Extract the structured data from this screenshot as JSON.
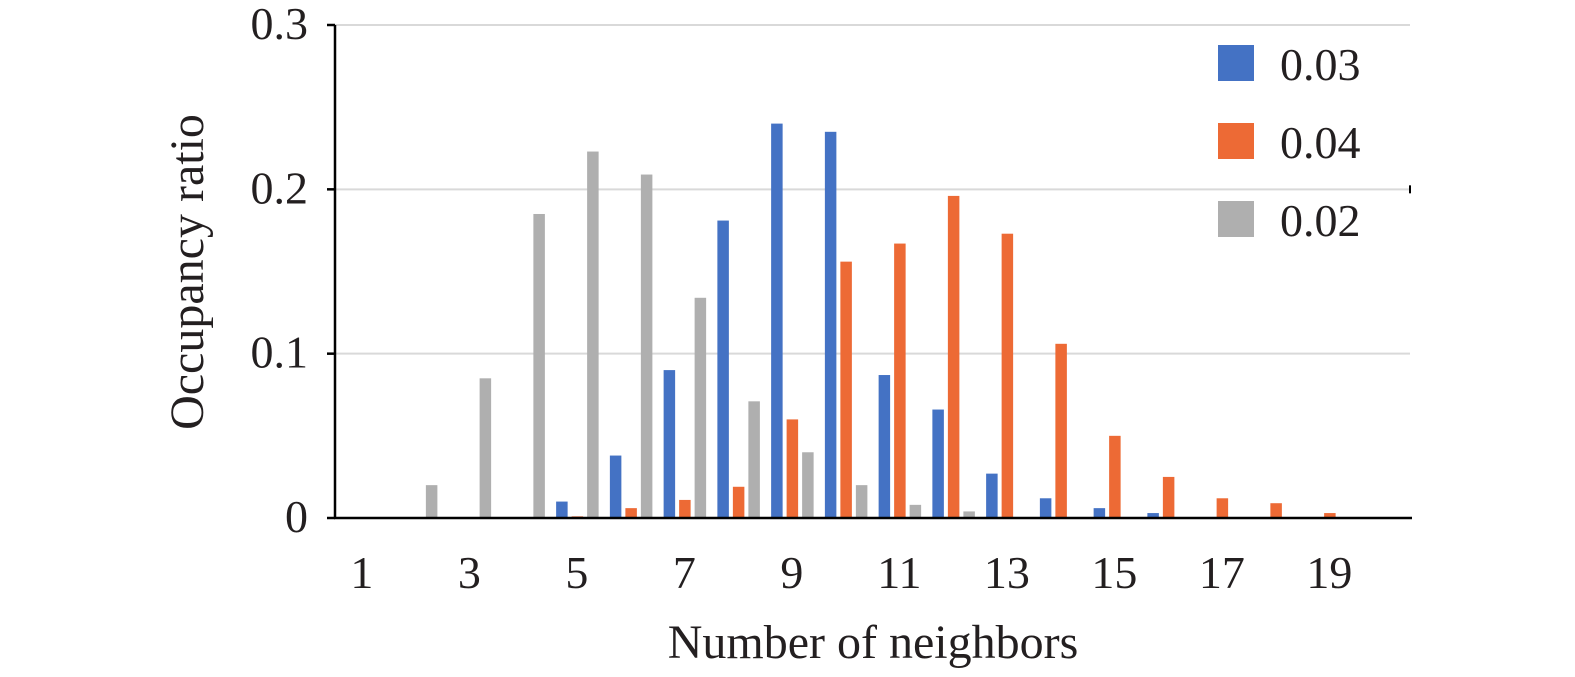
{
  "chart_data": {
    "type": "bar",
    "title": "",
    "xlabel": "Number of neighbors",
    "ylabel": "Occupancy ratio",
    "categories": [
      1,
      2,
      3,
      4,
      5,
      6,
      7,
      8,
      9,
      10,
      11,
      12,
      13,
      14,
      15,
      16,
      17,
      18,
      19,
      20
    ],
    "x_tick_labels": [
      "1",
      "3",
      "5",
      "7",
      "9",
      "11",
      "13",
      "15",
      "17",
      "19"
    ],
    "y_tick_labels": [
      "0",
      "0.1",
      "0.2",
      "0.3"
    ],
    "ylim": [
      0,
      0.3
    ],
    "y_ticks": [
      0,
      0.1,
      0.2,
      0.3
    ],
    "grid": "horizontal",
    "legend_position": "top-right",
    "series": [
      {
        "name": "0.03",
        "color": "#4472c4",
        "values": [
          0,
          0,
          0,
          0,
          0.01,
          0.038,
          0.09,
          0.181,
          0.24,
          0.235,
          0.087,
          0.066,
          0.027,
          0.012,
          0.006,
          0.003,
          0,
          0,
          0,
          0
        ]
      },
      {
        "name": "0.04",
        "color": "#ed6a35",
        "values": [
          0,
          0,
          0,
          0,
          0.001,
          0.006,
          0.011,
          0.019,
          0.06,
          0.156,
          0.167,
          0.196,
          0.173,
          0.106,
          0.05,
          0.025,
          0.012,
          0.009,
          0.003,
          0
        ]
      },
      {
        "name": "0.02",
        "color": "#afafaf",
        "values": [
          0,
          0.02,
          0.085,
          0.185,
          0.223,
          0.209,
          0.134,
          0.071,
          0.04,
          0.02,
          0.008,
          0.004,
          0,
          0,
          0,
          0,
          0,
          0,
          0,
          0
        ]
      }
    ]
  }
}
